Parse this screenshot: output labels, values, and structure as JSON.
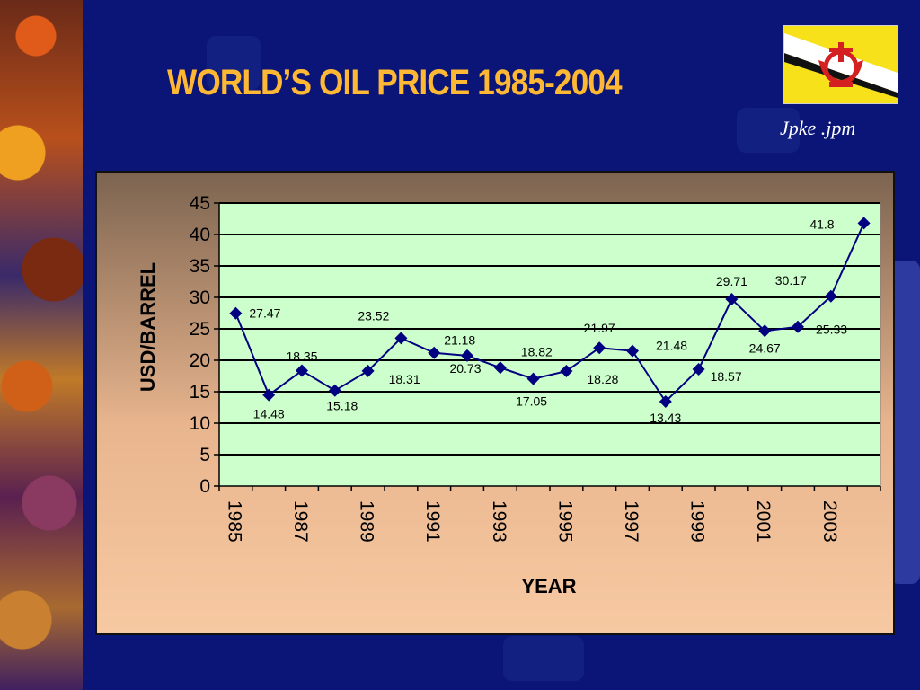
{
  "slide": {
    "title": "WORLD’S OIL PRICE 1985-2004",
    "author": "Jpke .jpm"
  },
  "colors": {
    "background": "#0b1577",
    "title": "#ffb833",
    "plot_area": "#ccffcc",
    "series_line": "#000080"
  },
  "icons": {
    "flag": "brunei-flag-icon"
  },
  "chart_data": {
    "type": "line",
    "title": "",
    "xlabel": "YEAR",
    "ylabel": "USD/BARREL",
    "ylim": [
      0,
      45
    ],
    "yticks": [
      "0",
      "5",
      "10",
      "15",
      "20",
      "25",
      "30",
      "35",
      "40",
      "45"
    ],
    "x": [
      1985,
      1986,
      1987,
      1988,
      1989,
      1990,
      1991,
      1992,
      1993,
      1994,
      1995,
      1996,
      1997,
      1998,
      1999,
      2000,
      2001,
      2002,
      2003,
      2004
    ],
    "xtick_labels": [
      "1985",
      "1987",
      "1989",
      "1991",
      "1993",
      "1995",
      "1997",
      "1999",
      "2001",
      "2003"
    ],
    "series": [
      {
        "values": [
          27.47,
          14.48,
          18.35,
          15.18,
          18.31,
          23.52,
          21.18,
          20.73,
          18.82,
          17.05,
          18.28,
          21.97,
          21.48,
          13.43,
          18.57,
          29.71,
          24.67,
          25.33,
          30.17,
          41.8
        ],
        "labels": [
          "27.47",
          "14.48",
          "18.35",
          "15.18",
          "18.31",
          "23.52",
          "21.18",
          "20.73",
          "18.82",
          "17.05",
          "18.28",
          "21.97",
          "21.48",
          "13.43",
          "18.57",
          "29.71",
          "24.67",
          "25.33",
          "30.17",
          "41.8"
        ]
      }
    ],
    "grid": true,
    "legend": "none"
  }
}
